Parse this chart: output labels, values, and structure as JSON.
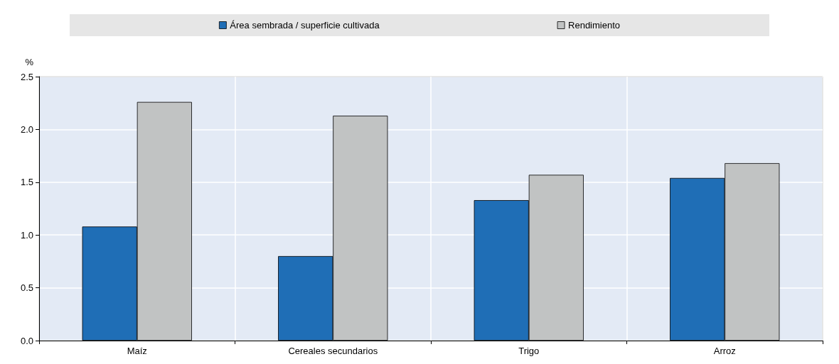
{
  "chart_data": {
    "type": "bar",
    "ylabel": "%",
    "categories": [
      "Maíz",
      "Cereales secundarios",
      "Trigo",
      "Arroz"
    ],
    "series": [
      {
        "name": "Área sembrada / superficie cultivada",
        "color": "#1f6eb6",
        "values": [
          1.08,
          0.8,
          1.33,
          1.54
        ]
      },
      {
        "name": "Rendimiento",
        "color": "#c1c3c3",
        "values": [
          2.26,
          2.13,
          1.57,
          1.68
        ]
      }
    ],
    "ylim": [
      0,
      2.5
    ],
    "yticks": [
      {
        "value": 0,
        "label": "0.0"
      },
      {
        "value": 0.5,
        "label": "0.5"
      },
      {
        "value": 1,
        "label": "1.0"
      },
      {
        "value": 1.5,
        "label": "1.5"
      },
      {
        "value": 2,
        "label": "2.0"
      },
      {
        "value": 2.5,
        "label": "2.5"
      }
    ],
    "grid": true,
    "legend": "top"
  }
}
